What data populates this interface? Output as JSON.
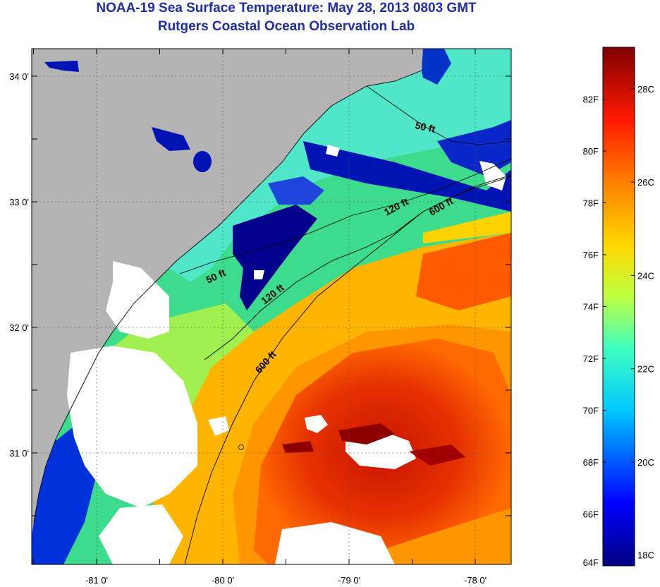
{
  "header": {
    "title": "NOAA-19 Sea Surface Temperature:  May 28, 2013 0803 GMT",
    "subtitle": "Rutgers Coastal Ocean Observation Lab"
  },
  "map": {
    "lat_ticks": [
      {
        "label": "34 0'",
        "lat": 34.0
      },
      {
        "label": "33 0'",
        "lat": 33.0
      },
      {
        "label": "32 0'",
        "lat": 32.0
      },
      {
        "label": "31 0'",
        "lat": 31.0
      }
    ],
    "lon_ticks": [
      {
        "label": "-81 0'",
        "lon": -81.0
      },
      {
        "label": "-80 0'",
        "lon": -80.0
      },
      {
        "label": "-79 0'",
        "lon": -79.0
      },
      {
        "label": "-78 0'",
        "lon": -78.0
      }
    ],
    "contours": {
      "c50": "50 ft",
      "c120": "120 ft",
      "c600": "600 ft"
    },
    "colors": {
      "land": "#b4b4b4",
      "cloud": "#ffffff",
      "cold": "#00008c",
      "warm": "#e62800"
    }
  },
  "colorbar": {
    "min_f": 64,
    "max_f": 84,
    "f_labels": [
      "82F",
      "80F",
      "78F",
      "76F",
      "74F",
      "72F",
      "70F",
      "68F",
      "66F",
      "64F"
    ],
    "c_labels": [
      "28C",
      "26C",
      "24C",
      "22C",
      "20C",
      "18C"
    ]
  }
}
